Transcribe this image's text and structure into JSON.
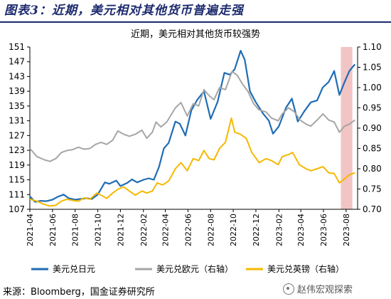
{
  "figure": {
    "title": "图表3：近期，美元相对其他货币普遍走强",
    "source": "来源：Bloomberg，国金证券研究所",
    "watermark": "赵伟宏观探索"
  },
  "chart_data": {
    "type": "line",
    "title": "近期，美元相对其他货币较强势",
    "left_axis": {
      "ylim": [
        107,
        151
      ],
      "ticks": [
        107,
        111,
        115,
        119,
        123,
        127,
        131,
        135,
        139,
        143,
        147,
        151
      ]
    },
    "right_axis": {
      "ylim": [
        0.7,
        1.1
      ],
      "ticks": [
        "0.70",
        "0.75",
        "0.80",
        "0.85",
        "0.90",
        "0.95",
        "1.00",
        "1.05",
        "1.10"
      ]
    },
    "x_range": [
      "2021-04",
      "2023-09"
    ],
    "x_ticks": [
      "2021-04",
      "2021-06",
      "2021-08",
      "2021-10",
      "2021-12",
      "2022-02",
      "2022-04",
      "2022-06",
      "2022-08",
      "2022-10",
      "2022-12",
      "2023-02",
      "2023-04",
      "2023-06",
      "2023-08"
    ],
    "highlight": {
      "from": "2023-07-18",
      "to": "2023-08-18",
      "color": "#f2c4c4"
    },
    "legend_position": "bottom",
    "series": [
      {
        "name": "美元兑日元",
        "axis": "left",
        "color": "#1f6cb4",
        "points": [
          [
            "2021-04-01",
            110.5
          ],
          [
            "2021-04-15",
            109.0
          ],
          [
            "2021-05-01",
            109.3
          ],
          [
            "2021-05-15",
            109.2
          ],
          [
            "2021-06-01",
            109.6
          ],
          [
            "2021-06-15",
            110.4
          ],
          [
            "2021-07-01",
            111.0
          ],
          [
            "2021-07-15",
            110.0
          ],
          [
            "2021-08-01",
            109.6
          ],
          [
            "2021-08-15",
            109.8
          ],
          [
            "2021-09-01",
            110.0
          ],
          [
            "2021-09-15",
            109.8
          ],
          [
            "2021-10-01",
            111.0
          ],
          [
            "2021-10-20",
            114.3
          ],
          [
            "2021-11-01",
            113.9
          ],
          [
            "2021-11-20",
            114.8
          ],
          [
            "2021-12-01",
            113.3
          ],
          [
            "2021-12-20",
            114.2
          ],
          [
            "2022-01-01",
            115.1
          ],
          [
            "2022-01-15",
            114.3
          ],
          [
            "2022-02-01",
            115.0
          ],
          [
            "2022-02-15",
            115.4
          ],
          [
            "2022-03-01",
            115.0
          ],
          [
            "2022-03-15",
            118.5
          ],
          [
            "2022-03-28",
            123.5
          ],
          [
            "2022-04-10",
            125.0
          ],
          [
            "2022-04-28",
            130.8
          ],
          [
            "2022-05-10",
            130.2
          ],
          [
            "2022-05-25",
            127.0
          ],
          [
            "2022-06-10",
            133.8
          ],
          [
            "2022-06-25",
            136.5
          ],
          [
            "2022-07-14",
            139.0
          ],
          [
            "2022-08-01",
            131.5
          ],
          [
            "2022-08-20",
            136.2
          ],
          [
            "2022-09-07",
            144.0
          ],
          [
            "2022-09-22",
            143.5
          ],
          [
            "2022-10-05",
            145.0
          ],
          [
            "2022-10-21",
            150.0
          ],
          [
            "2022-11-01",
            147.5
          ],
          [
            "2022-11-15",
            139.0
          ],
          [
            "2022-12-01",
            136.0
          ],
          [
            "2022-12-20",
            133.0
          ],
          [
            "2023-01-05",
            131.0
          ],
          [
            "2023-01-16",
            127.5
          ],
          [
            "2023-02-01",
            129.5
          ],
          [
            "2023-02-20",
            134.5
          ],
          [
            "2023-03-08",
            137.0
          ],
          [
            "2023-03-24",
            130.8
          ],
          [
            "2023-04-10",
            133.5
          ],
          [
            "2023-04-28",
            136.0
          ],
          [
            "2023-05-15",
            136.5
          ],
          [
            "2023-05-30",
            140.0
          ],
          [
            "2023-06-15",
            141.5
          ],
          [
            "2023-06-30",
            144.5
          ],
          [
            "2023-07-14",
            138.0
          ],
          [
            "2023-07-28",
            141.5
          ],
          [
            "2023-08-10",
            144.5
          ],
          [
            "2023-08-18",
            145.5
          ],
          [
            "2023-08-25",
            146.3
          ]
        ]
      },
      {
        "name": "美元兑欧元（右轴）",
        "axis": "right",
        "color": "#a6a6a6",
        "points": [
          [
            "2021-04-01",
            0.85
          ],
          [
            "2021-04-20",
            0.83
          ],
          [
            "2021-05-10",
            0.822
          ],
          [
            "2021-05-25",
            0.818
          ],
          [
            "2021-06-10",
            0.825
          ],
          [
            "2021-06-25",
            0.84
          ],
          [
            "2021-07-10",
            0.845
          ],
          [
            "2021-07-25",
            0.847
          ],
          [
            "2021-08-10",
            0.853
          ],
          [
            "2021-08-25",
            0.848
          ],
          [
            "2021-09-10",
            0.85
          ],
          [
            "2021-09-25",
            0.86
          ],
          [
            "2021-10-10",
            0.865
          ],
          [
            "2021-10-25",
            0.86
          ],
          [
            "2021-11-10",
            0.87
          ],
          [
            "2021-11-24",
            0.893
          ],
          [
            "2021-12-10",
            0.885
          ],
          [
            "2021-12-25",
            0.88
          ],
          [
            "2022-01-10",
            0.885
          ],
          [
            "2022-01-28",
            0.895
          ],
          [
            "2022-02-10",
            0.875
          ],
          [
            "2022-02-25",
            0.89
          ],
          [
            "2022-03-07",
            0.915
          ],
          [
            "2022-03-20",
            0.903
          ],
          [
            "2022-04-05",
            0.915
          ],
          [
            "2022-04-28",
            0.95
          ],
          [
            "2022-05-13",
            0.963
          ],
          [
            "2022-05-30",
            0.93
          ],
          [
            "2022-06-15",
            0.96
          ],
          [
            "2022-06-30",
            0.955
          ],
          [
            "2022-07-14",
            0.995
          ],
          [
            "2022-07-28",
            0.98
          ],
          [
            "2022-08-10",
            0.97
          ],
          [
            "2022-08-25",
            1.0
          ],
          [
            "2022-09-10",
            0.995
          ],
          [
            "2022-09-28",
            1.04
          ],
          [
            "2022-10-12",
            1.03
          ],
          [
            "2022-10-25",
            1.01
          ],
          [
            "2022-11-10",
            0.99
          ],
          [
            "2022-11-25",
            0.96
          ],
          [
            "2022-12-10",
            0.945
          ],
          [
            "2022-12-28",
            0.94
          ],
          [
            "2023-01-12",
            0.925
          ],
          [
            "2023-01-30",
            0.918
          ],
          [
            "2023-02-10",
            0.935
          ],
          [
            "2023-02-27",
            0.95
          ],
          [
            "2023-03-15",
            0.94
          ],
          [
            "2023-03-30",
            0.92
          ],
          [
            "2023-04-15",
            0.91
          ],
          [
            "2023-04-28",
            0.905
          ],
          [
            "2023-05-15",
            0.92
          ],
          [
            "2023-05-31",
            0.935
          ],
          [
            "2023-06-15",
            0.92
          ],
          [
            "2023-06-30",
            0.915
          ],
          [
            "2023-07-14",
            0.89
          ],
          [
            "2023-07-28",
            0.905
          ],
          [
            "2023-08-10",
            0.91
          ],
          [
            "2023-08-25",
            0.92
          ]
        ]
      },
      {
        "name": "美元兑英镑（右轴）",
        "axis": "right",
        "color": "#f5b800",
        "points": [
          [
            "2021-04-01",
            0.725
          ],
          [
            "2021-04-20",
            0.72
          ],
          [
            "2021-05-10",
            0.712
          ],
          [
            "2021-05-25",
            0.708
          ],
          [
            "2021-06-10",
            0.71
          ],
          [
            "2021-06-25",
            0.72
          ],
          [
            "2021-07-10",
            0.725
          ],
          [
            "2021-07-25",
            0.722
          ],
          [
            "2021-08-10",
            0.72
          ],
          [
            "2021-08-25",
            0.728
          ],
          [
            "2021-09-10",
            0.725
          ],
          [
            "2021-09-28",
            0.74
          ],
          [
            "2021-10-10",
            0.735
          ],
          [
            "2021-10-25",
            0.727
          ],
          [
            "2021-11-10",
            0.74
          ],
          [
            "2021-11-25",
            0.75
          ],
          [
            "2021-12-10",
            0.755
          ],
          [
            "2021-12-25",
            0.745
          ],
          [
            "2022-01-10",
            0.735
          ],
          [
            "2022-01-28",
            0.745
          ],
          [
            "2022-02-10",
            0.74
          ],
          [
            "2022-02-25",
            0.745
          ],
          [
            "2022-03-10",
            0.765
          ],
          [
            "2022-03-25",
            0.76
          ],
          [
            "2022-04-10",
            0.77
          ],
          [
            "2022-04-28",
            0.8
          ],
          [
            "2022-05-13",
            0.815
          ],
          [
            "2022-05-30",
            0.795
          ],
          [
            "2022-06-15",
            0.825
          ],
          [
            "2022-06-30",
            0.82
          ],
          [
            "2022-07-14",
            0.845
          ],
          [
            "2022-07-28",
            0.825
          ],
          [
            "2022-08-10",
            0.822
          ],
          [
            "2022-08-25",
            0.85
          ],
          [
            "2022-09-10",
            0.865
          ],
          [
            "2022-09-26",
            0.925
          ],
          [
            "2022-10-05",
            0.89
          ],
          [
            "2022-10-20",
            0.885
          ],
          [
            "2022-11-05",
            0.875
          ],
          [
            "2022-11-20",
            0.84
          ],
          [
            "2022-12-10",
            0.815
          ],
          [
            "2022-12-28",
            0.825
          ],
          [
            "2023-01-12",
            0.82
          ],
          [
            "2023-01-30",
            0.81
          ],
          [
            "2023-02-10",
            0.83
          ],
          [
            "2023-02-27",
            0.835
          ],
          [
            "2023-03-10",
            0.84
          ],
          [
            "2023-03-28",
            0.81
          ],
          [
            "2023-04-15",
            0.8
          ],
          [
            "2023-04-28",
            0.795
          ],
          [
            "2023-05-15",
            0.8
          ],
          [
            "2023-05-31",
            0.805
          ],
          [
            "2023-06-15",
            0.79
          ],
          [
            "2023-06-30",
            0.788
          ],
          [
            "2023-07-14",
            0.765
          ],
          [
            "2023-07-28",
            0.775
          ],
          [
            "2023-08-10",
            0.785
          ],
          [
            "2023-08-25",
            0.79
          ]
        ]
      }
    ]
  }
}
